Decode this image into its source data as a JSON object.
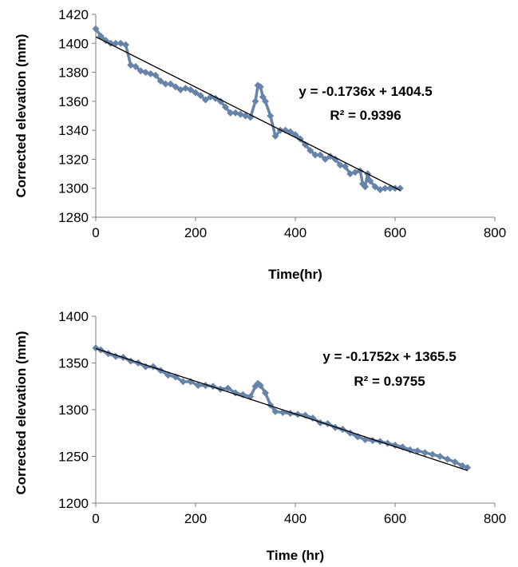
{
  "chart_data": [
    {
      "type": "scatter",
      "xlabel": "Time(hr)",
      "ylabel": "Corrected elevation (mm)",
      "xlim": [
        0,
        800
      ],
      "ylim": [
        1280,
        1420
      ],
      "xticks": [
        0,
        200,
        400,
        600,
        800
      ],
      "yticks": [
        1280,
        1300,
        1320,
        1340,
        1360,
        1380,
        1400,
        1420
      ],
      "grid": false,
      "series_color": "#6683aa",
      "trend_color": "#000000",
      "annotation": {
        "equation": "y = -0.1736x + 1404.5",
        "r2": "R² = 0.9396"
      },
      "trendline": {
        "slope": -0.1736,
        "intercept": 1404.5,
        "x_range": [
          0,
          610
        ]
      },
      "x": [
        0,
        10,
        20,
        30,
        40,
        50,
        60,
        70,
        80,
        90,
        100,
        110,
        120,
        130,
        140,
        150,
        160,
        170,
        180,
        190,
        200,
        210,
        220,
        230,
        240,
        250,
        260,
        270,
        280,
        290,
        300,
        310,
        320,
        325,
        330,
        335,
        340,
        350,
        360,
        370,
        380,
        390,
        400,
        410,
        420,
        430,
        440,
        450,
        460,
        470,
        480,
        490,
        500,
        510,
        520,
        530,
        535,
        540,
        545,
        550,
        560,
        570,
        580,
        590,
        600,
        610
      ],
      "y": [
        1410,
        1405,
        1402,
        1400,
        1400,
        1400,
        1399,
        1385,
        1384,
        1381,
        1380,
        1379,
        1378,
        1374,
        1372,
        1372,
        1370,
        1368,
        1369,
        1368,
        1366,
        1364,
        1361,
        1363,
        1362,
        1360,
        1356,
        1352,
        1352,
        1351,
        1350,
        1349,
        1360,
        1371,
        1370,
        1363,
        1360,
        1350,
        1336,
        1340,
        1340,
        1339,
        1337,
        1334,
        1330,
        1326,
        1323,
        1323,
        1320,
        1322,
        1320,
        1316,
        1315,
        1310,
        1311,
        1312,
        1303,
        1301,
        1310,
        1305,
        1301,
        1299,
        1300,
        1300,
        1300,
        1300
      ]
    },
    {
      "type": "scatter",
      "xlabel": "Time (hr)",
      "ylabel": "Corrected elevation (mm)",
      "xlim": [
        0,
        800
      ],
      "ylim": [
        1200,
        1400
      ],
      "xticks": [
        0,
        200,
        400,
        600,
        800
      ],
      "yticks": [
        1200,
        1250,
        1300,
        1350,
        1400
      ],
      "grid": false,
      "series_color": "#6683aa",
      "trend_color": "#000000",
      "annotation": {
        "equation": "y = -0.1752x + 1365.5",
        "r2": "R² = 0.9755"
      },
      "trendline": {
        "slope": -0.1752,
        "intercept": 1365.5,
        "x_range": [
          0,
          745
        ]
      },
      "x": [
        0,
        10,
        25,
        40,
        55,
        70,
        85,
        100,
        115,
        130,
        145,
        160,
        175,
        190,
        205,
        220,
        235,
        250,
        265,
        280,
        295,
        310,
        320,
        325,
        330,
        340,
        350,
        360,
        375,
        390,
        405,
        420,
        435,
        450,
        465,
        480,
        495,
        510,
        525,
        540,
        555,
        570,
        585,
        600,
        615,
        630,
        645,
        660,
        675,
        690,
        705,
        720,
        735,
        745
      ],
      "y": [
        1366,
        1364,
        1360,
        1357,
        1356,
        1352,
        1350,
        1346,
        1346,
        1342,
        1337,
        1335,
        1330,
        1330,
        1326,
        1326,
        1325,
        1322,
        1323,
        1318,
        1316,
        1314,
        1325,
        1328,
        1326,
        1318,
        1305,
        1298,
        1297,
        1296,
        1295,
        1294,
        1291,
        1286,
        1285,
        1281,
        1279,
        1275,
        1271,
        1268,
        1267,
        1266,
        1264,
        1262,
        1260,
        1257,
        1256,
        1254,
        1252,
        1250,
        1247,
        1244,
        1240,
        1238
      ]
    }
  ]
}
